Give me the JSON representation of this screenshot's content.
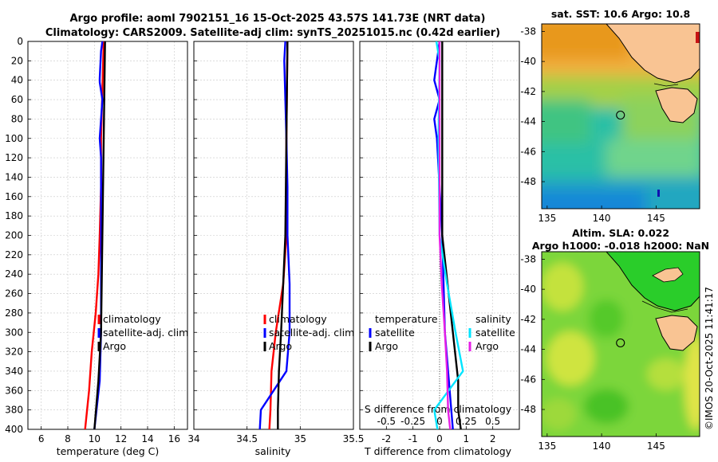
{
  "figure": {
    "title_line1": "Argo profile: aoml 7902151_16 15-Oct-2025 43.57S 141.73E (NRT data)",
    "title_line2": "Climatology: CARS2009. Satellite-adj clim: synTS_20251015.nc (0.42d earlier)",
    "side_stamp": "©IMOS 20-Oct-2025 11:41:17",
    "colors": {
      "climatology": "#ff0000",
      "satellite": "#0000ff",
      "argo": "#000000",
      "satellite_salinity": "#00e5ff",
      "argo_salinity": "#e61ee6"
    }
  },
  "chart_data": [
    {
      "type": "line",
      "name": "temperature-panel",
      "xlabel": "temperature (deg C)",
      "ylabel": "",
      "xlim": [
        5,
        17
      ],
      "ylim": [
        400,
        0
      ],
      "x_ticks": [
        "6",
        "8",
        "10",
        "12",
        "14",
        "16"
      ],
      "y_ticks": [
        "0",
        "20",
        "40",
        "60",
        "80",
        "100",
        "120",
        "140",
        "160",
        "180",
        "200",
        "220",
        "240",
        "260",
        "280",
        "300",
        "320",
        "340",
        "360",
        "380",
        "400"
      ],
      "grid": true,
      "legend": [
        "climatology",
        "satellite-adj. clim",
        "Argo"
      ],
      "series": [
        {
          "name": "climatology",
          "color": "#ff0000",
          "depth": [
            0,
            50,
            100,
            150,
            200,
            240,
            280,
            320,
            360,
            400
          ],
          "values": [
            10.7,
            10.6,
            10.5,
            10.5,
            10.4,
            10.3,
            10.1,
            9.8,
            9.6,
            9.3
          ]
        },
        {
          "name": "satellite-adj. clim",
          "color": "#0000ff",
          "depth": [
            0,
            10,
            38,
            42,
            60,
            80,
            100,
            120,
            150,
            200,
            250,
            300,
            350,
            400
          ],
          "values": [
            10.6,
            10.5,
            10.4,
            10.4,
            10.6,
            10.5,
            10.4,
            10.5,
            10.5,
            10.5,
            10.5,
            10.5,
            10.4,
            10.0
          ]
        },
        {
          "name": "Argo",
          "color": "#000000",
          "depth": [
            0,
            50,
            100,
            150,
            200,
            250,
            300,
            350,
            400
          ],
          "values": [
            10.8,
            10.75,
            10.7,
            10.65,
            10.6,
            10.55,
            10.5,
            10.3,
            10.0
          ]
        }
      ]
    },
    {
      "type": "line",
      "name": "salinity-panel",
      "xlabel": "salinity",
      "xlim": [
        34,
        35.5
      ],
      "ylim": [
        400,
        0
      ],
      "x_ticks": [
        "34",
        "34.5",
        "35",
        "35.5"
      ],
      "grid": true,
      "legend": [
        "climatology",
        "satellite-adj. clim",
        "Argo"
      ],
      "series": [
        {
          "name": "climatology",
          "color": "#ff0000",
          "depth": [
            0,
            100,
            200,
            250,
            300,
            340,
            380,
            400
          ],
          "values": [
            34.88,
            34.87,
            34.87,
            34.84,
            34.77,
            34.73,
            34.72,
            34.71
          ]
        },
        {
          "name": "satellite-adj. clim",
          "color": "#0000ff",
          "depth": [
            0,
            20,
            100,
            150,
            200,
            250,
            300,
            340,
            380,
            400
          ],
          "values": [
            34.86,
            34.85,
            34.87,
            34.88,
            34.88,
            34.9,
            34.9,
            34.87,
            34.63,
            34.62
          ]
        },
        {
          "name": "Argo",
          "color": "#000000",
          "depth": [
            0,
            100,
            200,
            250,
            300,
            340,
            380,
            400
          ],
          "values": [
            34.88,
            34.87,
            34.86,
            34.84,
            34.82,
            34.8,
            34.79,
            34.79
          ]
        }
      ]
    },
    {
      "type": "line",
      "name": "difference-panel",
      "xlabel": "T difference from climatology",
      "xlabel_top": "S difference from climatology",
      "xlim": [
        -3,
        3
      ],
      "ylim": [
        400,
        0
      ],
      "x_ticks": [
        "-2",
        "-1",
        "0",
        "1",
        "2"
      ],
      "x2_ticks": [
        "-0.5",
        "-0.25",
        "0",
        "0.25",
        "0.5"
      ],
      "grid": true,
      "legend_left": [
        "temperature",
        "satellite",
        "Argo"
      ],
      "legend_right": [
        "salinity",
        "satellite",
        "Argo"
      ],
      "series": [
        {
          "name": "T satellite",
          "color": "#0000ff",
          "depth": [
            0,
            40,
            60,
            80,
            100,
            150,
            200,
            300,
            400
          ],
          "values": [
            0,
            -0.2,
            0,
            -0.2,
            -0.1,
            0,
            0.1,
            0.2,
            0.5
          ]
        },
        {
          "name": "T Argo",
          "color": "#000000",
          "depth": [
            0,
            100,
            200,
            250,
            300,
            350,
            380,
            400
          ],
          "values": [
            0.1,
            0.1,
            0.1,
            0.3,
            0.5,
            0.7,
            0.7,
            0.8
          ]
        },
        {
          "name": "S satellite",
          "color": "#00e5ff",
          "depth": [
            0,
            20,
            100,
            200,
            250,
            300,
            340,
            380,
            400
          ],
          "values": [
            -0.03,
            0,
            -0.01,
            0,
            0.07,
            0.15,
            0.22,
            -0.05,
            -0.02
          ]
        },
        {
          "name": "S Argo",
          "color": "#e61ee6",
          "depth": [
            0,
            100,
            200,
            250,
            300,
            340,
            380,
            400
          ],
          "values": [
            0,
            0,
            0,
            0.02,
            0.05,
            0.07,
            0.08,
            0.1
          ]
        }
      ]
    },
    {
      "type": "heatmap",
      "name": "sst-map",
      "title": "sat. SST: 10.6 Argo: 10.8",
      "x_ticks": [
        "135",
        "140",
        "145"
      ],
      "y_ticks": [
        "-38",
        "-40",
        "-42",
        "-44",
        "-46",
        "-48"
      ],
      "xlim": [
        134.5,
        149
      ],
      "ylim": [
        -49.8,
        -37.5
      ],
      "argo_position": [
        141.73,
        -43.57
      ]
    },
    {
      "type": "heatmap",
      "name": "sla-map",
      "title_line1": "Altim. SLA: 0.022",
      "title_line2": "Argo h1000: -0.018 h2000: NaN",
      "x_ticks": [
        "135",
        "140",
        "145"
      ],
      "y_ticks": [
        "-38",
        "-40",
        "-42",
        "-44",
        "-46",
        "-48"
      ],
      "xlim": [
        134.5,
        149
      ],
      "ylim": [
        -49.8,
        -37.5
      ],
      "argo_position": [
        141.73,
        -43.57
      ]
    }
  ]
}
